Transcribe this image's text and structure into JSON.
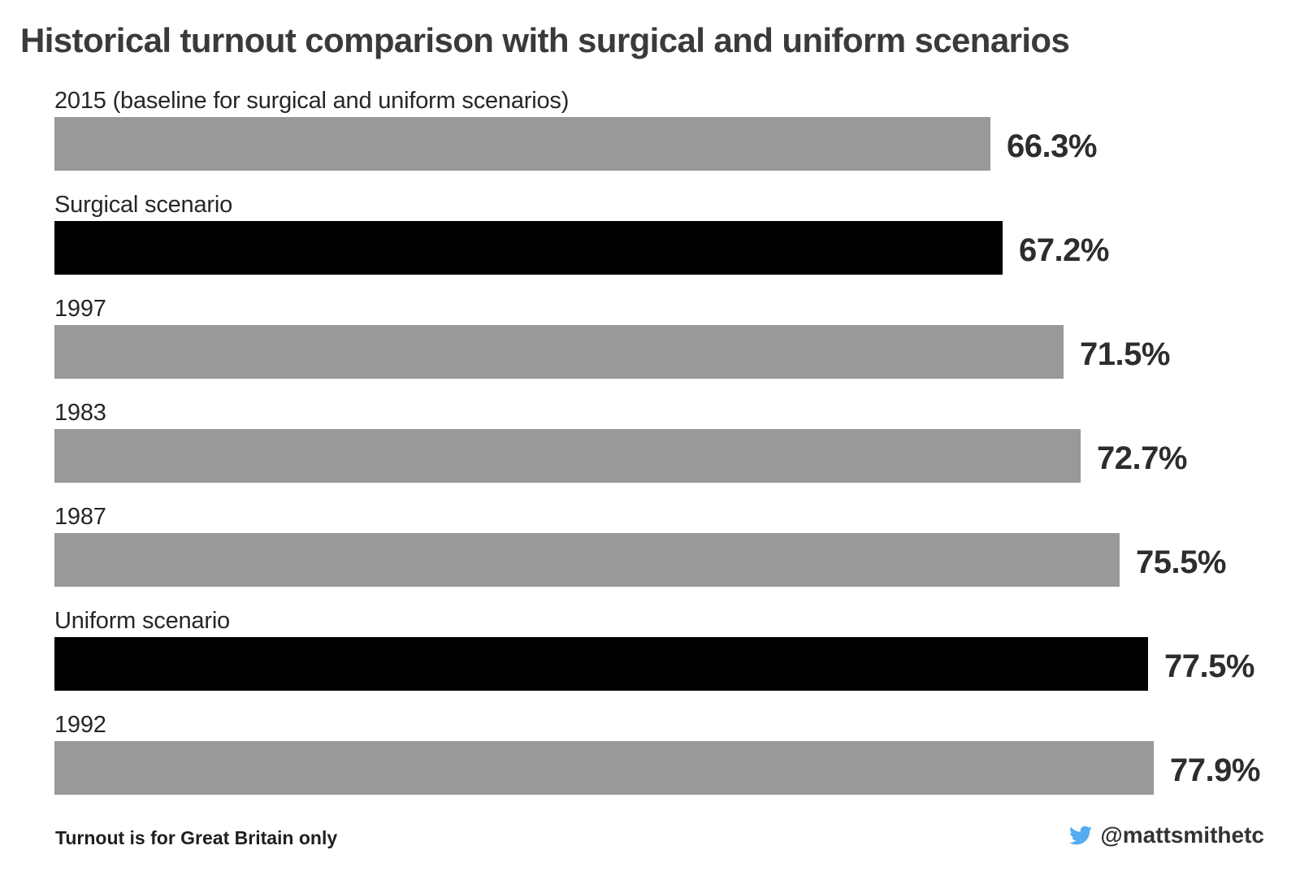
{
  "chart_data": {
    "type": "bar",
    "orientation": "horizontal",
    "title": "Historical turnout comparison with surgical and uniform scenarios",
    "value_unit": "%",
    "xlim": [
      0,
      80
    ],
    "grid": false,
    "legend": "none",
    "rows": [
      {
        "label": "2015 (baseline for surgical and uniform scenarios)",
        "value": 66.3,
        "value_label": "66.3%",
        "kind": "historical",
        "color": "#999999"
      },
      {
        "label": "Surgical scenario",
        "value": 67.2,
        "value_label": "67.2%",
        "kind": "scenario",
        "color": "#000000"
      },
      {
        "label": "1997",
        "value": 71.5,
        "value_label": "71.5%",
        "kind": "historical",
        "color": "#999999"
      },
      {
        "label": "1983",
        "value": 72.7,
        "value_label": "72.7%",
        "kind": "historical",
        "color": "#999999"
      },
      {
        "label": "1987",
        "value": 75.5,
        "value_label": "75.5%",
        "kind": "historical",
        "color": "#999999"
      },
      {
        "label": "Uniform scenario",
        "value": 77.5,
        "value_label": "77.5%",
        "kind": "scenario",
        "color": "#000000"
      },
      {
        "label": "1992",
        "value": 77.9,
        "value_label": "77.9%",
        "kind": "historical",
        "color": "#999999"
      }
    ],
    "caption": "Turnout is for Great Britain only"
  },
  "footer": {
    "handle": "@mattsmithetc",
    "twitter_icon": "twitter-bird-icon"
  },
  "colors": {
    "background": "#ffffff",
    "title_text": "#3a3a3a",
    "label_text": "#262626",
    "value_text": "#2d2d2d",
    "bar_gray": "#999999",
    "bar_black": "#000000",
    "twitter_blue": "#55acee"
  }
}
